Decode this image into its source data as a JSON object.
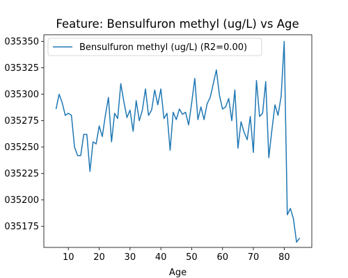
{
  "chart_data": {
    "type": "line",
    "title": "Feature: Bensulfuron methyl (ug/L) vs Age",
    "xlabel": "Age",
    "ylabel": "",
    "xlim": [
      2.05,
      88.95
    ],
    "ylim": [
      0.0351551,
      0.0353563
    ],
    "x_ticks": [
      10,
      20,
      30,
      40,
      50,
      60,
      70,
      80
    ],
    "x_tick_labels": [
      "10",
      "20",
      "30",
      "40",
      "50",
      "60",
      "70",
      "80"
    ],
    "y_ticks": [
      0.035175,
      0.0352,
      0.035225,
      0.03525,
      0.035275,
      0.0353,
      0.035325,
      0.03535
    ],
    "y_tick_labels": [
      "035175",
      "035200",
      "035225",
      "035250",
      "035275",
      "035300",
      "035325",
      "035350"
    ],
    "grid": false,
    "legend_position": "top-left",
    "series": [
      {
        "name": "Bensulfuron methyl (ug/L) (R2=0.00)",
        "color": "#1f77b4",
        "x": [
          6,
          7,
          8,
          9,
          10,
          11,
          12,
          13,
          14,
          15,
          16,
          17,
          18,
          19,
          20,
          21,
          22,
          23,
          24,
          25,
          26,
          27,
          28,
          29,
          30,
          31,
          32,
          33,
          34,
          35,
          36,
          37,
          38,
          39,
          40,
          41,
          42,
          43,
          44,
          45,
          46,
          47,
          48,
          49,
          50,
          51,
          52,
          53,
          54,
          55,
          56,
          57,
          58,
          59,
          60,
          61,
          62,
          63,
          64,
          65,
          66,
          67,
          68,
          69,
          70,
          71,
          72,
          73,
          74,
          75,
          76,
          77,
          78,
          79,
          80,
          81,
          82,
          83,
          84,
          85
        ],
        "y": [
          0.035286,
          0.0353,
          0.035292,
          0.03528,
          0.035282,
          0.03528,
          0.03525,
          0.035242,
          0.035242,
          0.035262,
          0.035262,
          0.035227,
          0.035255,
          0.035253,
          0.03527,
          0.03526,
          0.03528,
          0.035297,
          0.035255,
          0.035282,
          0.035277,
          0.03531,
          0.035293,
          0.035278,
          0.035285,
          0.035265,
          0.035294,
          0.035275,
          0.035285,
          0.035305,
          0.03528,
          0.035285,
          0.035304,
          0.03529,
          0.035305,
          0.035277,
          0.035282,
          0.035247,
          0.035283,
          0.035276,
          0.035286,
          0.035281,
          0.035283,
          0.035271,
          0.035292,
          0.035315,
          0.035276,
          0.035288,
          0.035276,
          0.035291,
          0.035297,
          0.03531,
          0.035323,
          0.035299,
          0.035286,
          0.035288,
          0.035296,
          0.035275,
          0.035304,
          0.035249,
          0.035274,
          0.035264,
          0.035257,
          0.035279,
          0.035245,
          0.035313,
          0.035279,
          0.035282,
          0.035312,
          0.03524,
          0.035266,
          0.03529,
          0.03528,
          0.035298,
          0.03535,
          0.035186,
          0.035192,
          0.035182,
          0.03516,
          0.035164
        ]
      }
    ]
  }
}
